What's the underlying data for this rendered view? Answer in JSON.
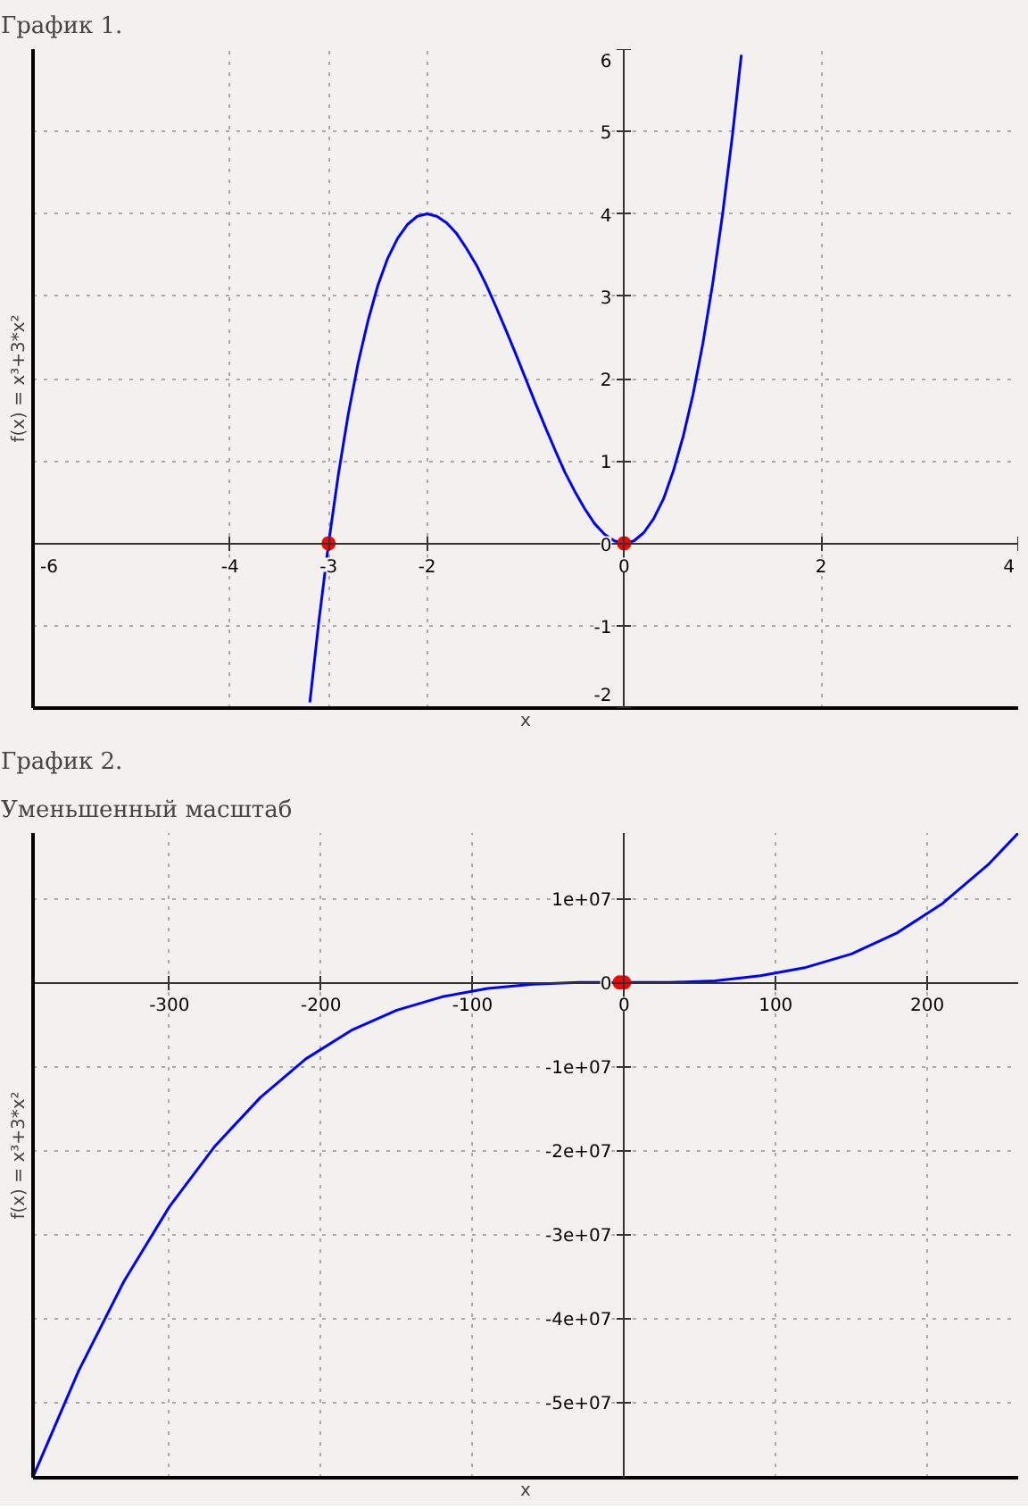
{
  "chart_data": [
    {
      "type": "line",
      "title": "График 1.",
      "xlabel": "x",
      "ylabel": "f(x) = x³+3*x²",
      "xlim": [
        -6,
        4
      ],
      "ylim": [
        -2,
        6
      ],
      "xticks": [
        -6,
        -4,
        -3,
        -2,
        0,
        2,
        4
      ],
      "yticks": [
        -2,
        -1,
        0,
        1,
        2,
        3,
        4,
        5,
        6
      ],
      "grid": true,
      "series": [
        {
          "color": "#0000ff",
          "line_style": "solid",
          "x": [
            -3.19,
            -3.1,
            -3.0,
            -2.9,
            -2.8,
            -2.7,
            -2.6,
            -2.5,
            -2.4,
            -2.3,
            -2.2,
            -2.1,
            -2.0,
            -1.9,
            -1.8,
            -1.7,
            -1.6,
            -1.5,
            -1.4,
            -1.3,
            -1.2,
            -1.1,
            -1.0,
            -0.9,
            -0.8,
            -0.7,
            -0.6,
            -0.5,
            -0.4,
            -0.3,
            -0.2,
            -0.1,
            0,
            0.1,
            0.2,
            0.3,
            0.4,
            0.5,
            0.6,
            0.7,
            0.8,
            0.9,
            1.0,
            1.1,
            1.19
          ],
          "values": [
            -1.93,
            -0.96,
            0,
            0.84,
            1.57,
            2.19,
            2.7,
            3.13,
            3.46,
            3.7,
            3.87,
            3.97,
            4,
            3.97,
            3.89,
            3.76,
            3.58,
            3.38,
            3.14,
            2.87,
            2.59,
            2.3,
            2,
            1.7,
            1.41,
            1.13,
            0.86,
            0.63,
            0.42,
            0.24,
            0.11,
            0.03,
            0,
            0.03,
            0.13,
            0.3,
            0.54,
            0.88,
            1.3,
            1.81,
            2.43,
            3.16,
            4,
            4.96,
            5.93
          ]
        },
        {
          "type": "scatter",
          "color": "#ff0000",
          "marker": "circle",
          "x": [
            -3,
            0
          ],
          "values": [
            0,
            0
          ]
        }
      ]
    },
    {
      "type": "line",
      "title": "График 2.",
      "subtitle": "Уменьшенный масштаб",
      "xlabel": "x",
      "ylabel": "f(x) = x³+3*x²",
      "xlim": [
        -390,
        260
      ],
      "ylim": [
        -59000000,
        17800000
      ],
      "xticks": [
        -300,
        -200,
        -100,
        0,
        100,
        200
      ],
      "yticks": [
        {
          "value": -50000000,
          "label": "-5e+07"
        },
        {
          "value": -40000000,
          "label": "-4e+07"
        },
        {
          "value": -30000000,
          "label": "-3e+07"
        },
        {
          "value": -20000000,
          "label": "-2e+07"
        },
        {
          "value": -10000000,
          "label": "-1e+07"
        },
        0,
        {
          "value": 10000000,
          "label": "1e+07"
        }
      ],
      "grid": true,
      "series": [
        {
          "color": "#0000ff",
          "line_style": "solid",
          "x": [
            -390,
            -360,
            -330,
            -300,
            -270,
            -240,
            -210,
            -180,
            -150,
            -120,
            -90,
            -60,
            -30,
            0,
            30,
            60,
            90,
            120,
            150,
            180,
            210,
            240,
            260
          ],
          "values": [
            -58900000,
            -46300000,
            -35600000,
            -26700000,
            -19500000,
            -13700000,
            -9100000,
            -5700000,
            -3300000,
            -1700000,
            -700000,
            -200000,
            0,
            0,
            0,
            200000,
            800000,
            1800000,
            3400000,
            5900000,
            9400000,
            14000000,
            17800000
          ]
        },
        {
          "type": "scatter",
          "color": "#ff0000",
          "marker": "circle",
          "x": [
            -3,
            0
          ],
          "values": [
            0,
            0
          ]
        }
      ]
    }
  ]
}
